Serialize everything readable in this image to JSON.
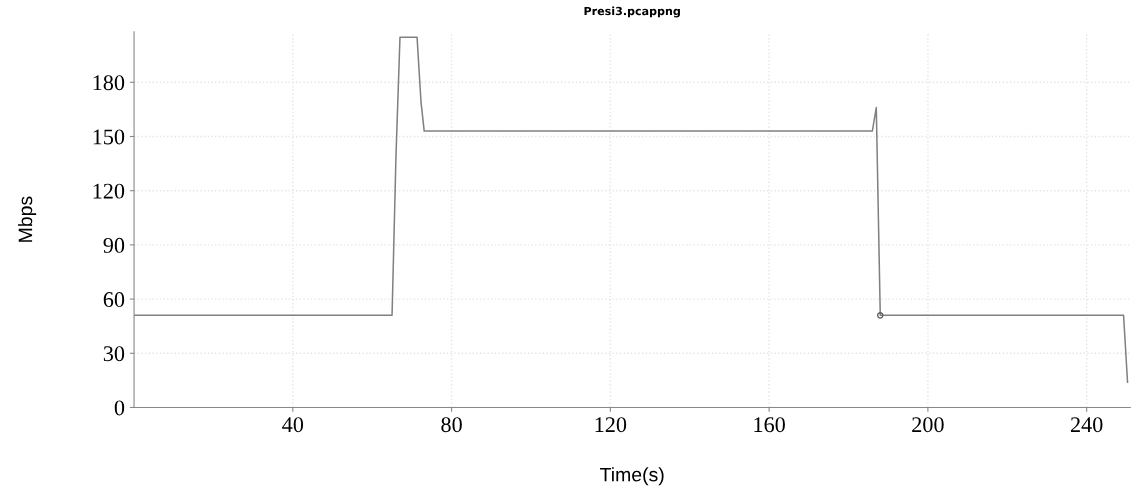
{
  "chart_data": {
    "type": "line",
    "title": "Presi3.pcappng",
    "xlabel": "Time(s)",
    "ylabel": "Mbps",
    "series": [
      {
        "color": "#808080",
        "x": [
          0,
          65,
          66,
          67,
          71.3,
          72.3,
          73.1,
          186,
          187,
          188,
          249.3,
          250.3
        ],
        "values": [
          51,
          51,
          140,
          205,
          205,
          169,
          153,
          153,
          166,
          51,
          51,
          14
        ]
      },
      {
        "type": "scatter",
        "color": "#606060",
        "x": [
          188
        ],
        "values": [
          51
        ]
      }
    ],
    "xlim": [
      0,
      251
    ],
    "ylim": [
      0,
      208
    ],
    "xticks": [
      40,
      80,
      120,
      160,
      200,
      240
    ],
    "yticks": [
      0,
      30,
      60,
      90,
      120,
      150,
      180
    ],
    "grid": true
  }
}
